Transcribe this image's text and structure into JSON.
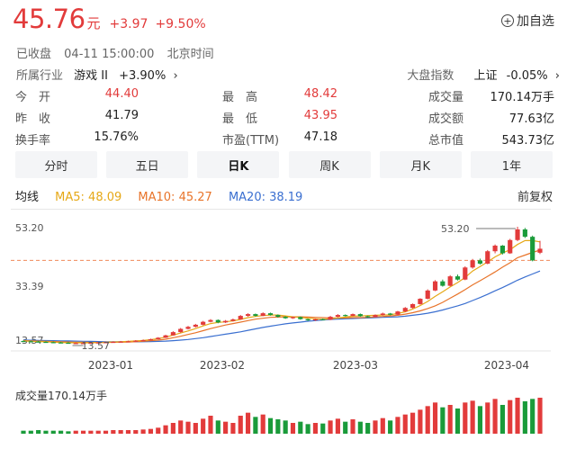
{
  "quote": {
    "price": "45.76",
    "unit": "元",
    "change": "+3.97",
    "change_pct": "+9.50%",
    "status": "已收盘",
    "datetime": "04-11 15:00:00",
    "timezone": "北京时间",
    "watch_label": "加自选",
    "watch_icon": "plus-circle-icon"
  },
  "industry": {
    "label": "所属行业",
    "name": "游戏 II",
    "change": "+3.90%",
    "arrow": "›"
  },
  "market": {
    "label": "大盘指数",
    "name": "上证",
    "change": "-0.05%",
    "arrow": "›"
  },
  "stats": [
    {
      "label": "今　开",
      "value": "44.40",
      "color": "red"
    },
    {
      "label": "最　高",
      "value": "48.42",
      "color": "red"
    },
    {
      "label": "成交量",
      "value": "170.14万手",
      "color": ""
    },
    {
      "label": "昨　收",
      "value": "41.79",
      "color": ""
    },
    {
      "label": "最　低",
      "value": "43.95",
      "color": "red"
    },
    {
      "label": "成交额",
      "value": "77.63亿",
      "color": ""
    },
    {
      "label": "换手率",
      "value": "15.76%",
      "color": ""
    },
    {
      "label": "市盈(TTM)",
      "value": "47.18",
      "color": ""
    },
    {
      "label": "总市值",
      "value": "543.73亿",
      "color": ""
    }
  ],
  "tabs": [
    {
      "label": "分时",
      "active": false
    },
    {
      "label": "五日",
      "active": false
    },
    {
      "label": "日K",
      "active": true
    },
    {
      "label": "周K",
      "active": false
    },
    {
      "label": "月K",
      "active": false
    },
    {
      "label": "1年",
      "active": false
    }
  ],
  "ma": {
    "title": "均线",
    "items": [
      {
        "label": "MA5: 48.09",
        "color": "#e6a817"
      },
      {
        "label": "MA10: 45.27",
        "color": "#e8742a"
      },
      {
        "label": "MA20: 38.19",
        "color": "#3a6fd0"
      }
    ],
    "adjust": "前复权"
  },
  "volume_label": "成交量170.14万手",
  "colors": {
    "up": "#e23b3b",
    "down": "#1a9b3a"
  },
  "chart_data": {
    "type": "candlestick",
    "y_ticks": [
      "53.20",
      "33.39",
      "13.57"
    ],
    "ylim": [
      13.57,
      53.2
    ],
    "x_ticks": [
      "2023-01",
      "2023-02",
      "2023-03",
      "2023-04"
    ],
    "annotations": {
      "high": "53.20",
      "low": "13.57"
    },
    "reference_price": 41.79,
    "candles": [
      [
        14.5,
        14.4,
        14.7,
        14.2
      ],
      [
        14.4,
        14.3,
        14.6,
        14.1
      ],
      [
        14.3,
        14.2,
        14.5,
        14.0
      ],
      [
        14.2,
        14.1,
        14.4,
        13.9
      ],
      [
        14.1,
        14.0,
        14.3,
        13.8
      ],
      [
        14.0,
        13.9,
        14.2,
        13.7
      ],
      [
        13.9,
        13.8,
        14.1,
        13.6
      ],
      [
        13.8,
        13.8,
        14.0,
        13.6
      ],
      [
        13.8,
        13.8,
        14.0,
        13.57
      ],
      [
        13.8,
        13.9,
        14.1,
        13.7
      ],
      [
        13.9,
        14.0,
        14.2,
        13.8
      ],
      [
        14.0,
        14.1,
        14.3,
        13.9
      ],
      [
        14.1,
        14.2,
        14.4,
        14.0
      ],
      [
        14.2,
        14.3,
        14.5,
        14.1
      ],
      [
        14.3,
        14.4,
        14.6,
        14.2
      ],
      [
        14.4,
        14.6,
        14.8,
        14.3
      ],
      [
        14.6,
        14.8,
        15.0,
        14.5
      ],
      [
        14.8,
        15.1,
        15.3,
        14.7
      ],
      [
        15.1,
        15.6,
        15.8,
        15.0
      ],
      [
        15.6,
        16.4,
        16.6,
        15.5
      ],
      [
        16.4,
        17.5,
        17.8,
        16.3
      ],
      [
        17.5,
        18.6,
        18.9,
        17.3
      ],
      [
        18.6,
        19.3,
        19.6,
        18.4
      ],
      [
        19.3,
        20.0,
        20.3,
        19.1
      ],
      [
        20.0,
        21.0,
        21.3,
        19.8
      ],
      [
        21.0,
        21.6,
        21.9,
        20.8
      ],
      [
        21.6,
        20.8,
        21.8,
        20.5
      ],
      [
        20.8,
        21.3,
        21.6,
        20.6
      ],
      [
        21.3,
        21.8,
        22.1,
        21.1
      ],
      [
        21.8,
        23.0,
        23.3,
        21.7
      ],
      [
        23.0,
        23.6,
        23.9,
        22.7
      ],
      [
        23.6,
        23.0,
        23.8,
        22.8
      ],
      [
        23.0,
        23.9,
        24.2,
        22.9
      ],
      [
        23.9,
        23.3,
        24.1,
        23.1
      ],
      [
        23.3,
        22.7,
        23.5,
        22.4
      ],
      [
        22.7,
        22.2,
        22.9,
        22.0
      ],
      [
        22.2,
        22.6,
        22.8,
        22.0
      ],
      [
        22.6,
        21.9,
        22.8,
        21.7
      ],
      [
        21.9,
        21.5,
        22.1,
        21.3
      ],
      [
        21.5,
        21.9,
        22.1,
        21.3
      ],
      [
        21.9,
        21.7,
        22.1,
        21.5
      ],
      [
        21.7,
        22.7,
        23.0,
        21.6
      ],
      [
        22.7,
        23.3,
        23.6,
        22.5
      ],
      [
        23.3,
        23.0,
        23.5,
        22.8
      ],
      [
        23.0,
        23.6,
        23.8,
        22.9
      ],
      [
        23.6,
        22.9,
        23.8,
        22.7
      ],
      [
        22.9,
        22.6,
        23.1,
        22.4
      ],
      [
        22.6,
        23.3,
        23.5,
        22.5
      ],
      [
        23.3,
        23.8,
        24.1,
        23.1
      ],
      [
        23.8,
        23.4,
        24.0,
        23.2
      ],
      [
        23.4,
        24.5,
        24.7,
        23.3
      ],
      [
        24.5,
        25.7,
        26.0,
        24.3
      ],
      [
        25.7,
        27.0,
        27.2,
        25.5
      ],
      [
        27.0,
        28.8,
        29.0,
        26.8
      ],
      [
        28.8,
        31.6,
        32.0,
        28.6
      ],
      [
        31.6,
        34.7,
        35.1,
        31.4
      ],
      [
        34.7,
        33.2,
        35.3,
        32.9
      ],
      [
        33.2,
        36.4,
        36.8,
        33.0
      ],
      [
        36.4,
        35.3,
        37.0,
        35.0
      ],
      [
        35.3,
        39.4,
        39.8,
        35.1
      ],
      [
        39.4,
        41.8,
        42.3,
        39.0
      ],
      [
        41.8,
        40.7,
        42.4,
        40.4
      ],
      [
        40.7,
        44.9,
        45.3,
        40.5
      ],
      [
        44.9,
        46.8,
        47.2,
        44.2
      ],
      [
        46.8,
        44.2,
        47.0,
        43.8
      ],
      [
        44.2,
        48.7,
        49.1,
        44.0
      ],
      [
        48.7,
        52.3,
        53.2,
        48.3
      ],
      [
        52.3,
        49.8,
        52.8,
        49.4
      ],
      [
        49.8,
        41.8,
        50.2,
        41.5
      ],
      [
        44.4,
        45.76,
        48.42,
        43.95
      ]
    ],
    "ma5": [
      14.5,
      14.4,
      14.3,
      14.2,
      14.1,
      14.0,
      13.9,
      13.9,
      13.85,
      13.9,
      13.95,
      14.05,
      14.15,
      14.25,
      14.35,
      14.5,
      14.7,
      14.95,
      15.3,
      15.8,
      16.5,
      17.2,
      17.9,
      18.7,
      19.6,
      20.4,
      20.8,
      21.0,
      21.3,
      21.8,
      22.4,
      22.8,
      23.1,
      23.3,
      23.3,
      23.0,
      22.7,
      22.5,
      22.2,
      22.0,
      21.8,
      22.0,
      22.3,
      22.6,
      22.9,
      23.0,
      23.1,
      23.2,
      23.3,
      23.4,
      23.8,
      24.4,
      25.3,
      26.5,
      27.9,
      29.6,
      31.2,
      32.8,
      34.3,
      36.0,
      38.2,
      39.7,
      41.3,
      43.0,
      44.3,
      45.4,
      47.2,
      48.5,
      48.5,
      48.09
    ],
    "ma10": [
      14.6,
      14.5,
      14.45,
      14.35,
      14.3,
      14.2,
      14.15,
      14.1,
      14.05,
      14.0,
      14.0,
      14.0,
      14.05,
      14.1,
      14.15,
      14.25,
      14.4,
      14.6,
      14.8,
      15.1,
      15.6,
      16.1,
      16.7,
      17.3,
      18.0,
      18.7,
      19.3,
      19.9,
      20.4,
      20.9,
      21.4,
      21.9,
      22.2,
      22.5,
      22.6,
      22.7,
      22.7,
      22.7,
      22.6,
      22.5,
      22.4,
      22.3,
      22.3,
      22.3,
      22.4,
      22.4,
      22.5,
      22.7,
      22.8,
      23.0,
      23.2,
      23.6,
      24.1,
      24.7,
      25.5,
      26.4,
      27.6,
      29.0,
      30.4,
      31.9,
      33.5,
      34.9,
      36.4,
      37.9,
      39.5,
      41.0,
      42.7,
      43.6,
      44.5,
      45.27
    ],
    "ma20": [
      14.8,
      14.75,
      14.7,
      14.65,
      14.6,
      14.55,
      14.5,
      14.45,
      14.4,
      14.35,
      14.3,
      14.25,
      14.2,
      14.2,
      14.2,
      14.2,
      14.25,
      14.3,
      14.35,
      14.45,
      14.6,
      14.8,
      15.0,
      15.3,
      15.6,
      16.0,
      16.4,
      16.8,
      17.2,
      17.6,
      18.1,
      18.6,
      19.1,
      19.5,
      19.9,
      20.3,
      20.6,
      20.9,
      21.2,
      21.4,
      21.6,
      21.8,
      21.9,
      22.0,
      22.1,
      22.2,
      22.3,
      22.4,
      22.5,
      22.6,
      22.7,
      22.9,
      23.2,
      23.5,
      23.9,
      24.4,
      25.0,
      25.7,
      26.4,
      27.2,
      28.2,
      29.2,
      30.3,
      31.5,
      32.6,
      33.8,
      35.1,
      36.2,
      37.2,
      38.19
    ],
    "volumes": [
      5,
      5,
      6,
      5,
      5,
      5,
      4,
      5,
      5,
      5,
      5,
      5,
      6,
      6,
      6,
      6,
      7,
      8,
      10,
      14,
      18,
      22,
      20,
      18,
      25,
      30,
      22,
      20,
      18,
      30,
      35,
      28,
      32,
      26,
      24,
      22,
      18,
      20,
      16,
      18,
      17,
      22,
      25,
      20,
      24,
      20,
      18,
      22,
      26,
      22,
      28,
      32,
      35,
      40,
      46,
      52,
      44,
      48,
      42,
      52,
      55,
      46,
      52,
      58,
      48,
      56,
      60,
      54,
      58,
      60
    ]
  }
}
